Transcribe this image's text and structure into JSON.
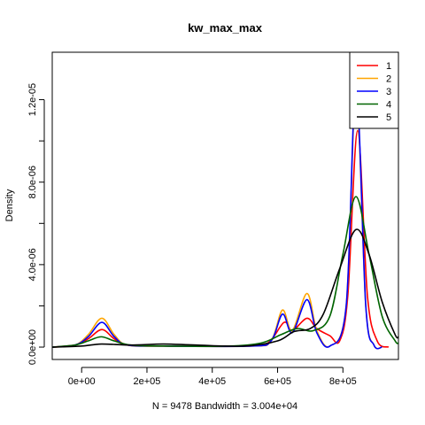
{
  "chart_data": {
    "type": "line",
    "title": "kw_max_max",
    "xlabel": "N = 9478   Bandwidth = 3.004e+04",
    "ylabel": "Density",
    "xlim": [
      -90000,
      970000
    ],
    "ylim": [
      -6e-07,
      1.43e-05
    ],
    "x_ticks": [
      {
        "value": 0,
        "label": "0e+00"
      },
      {
        "value": 200000,
        "label": "2e+05"
      },
      {
        "value": 400000,
        "label": "4e+05"
      },
      {
        "value": 600000,
        "label": "6e+05"
      },
      {
        "value": 800000,
        "label": "8e+05"
      }
    ],
    "y_ticks": [
      {
        "value": 0,
        "label": "0.0e+00"
      },
      {
        "value": 2e-06,
        "label": ""
      },
      {
        "value": 4e-06,
        "label": "4.0e-06"
      },
      {
        "value": 6e-06,
        "label": ""
      },
      {
        "value": 8e-06,
        "label": "8.0e-06"
      },
      {
        "value": 1e-05,
        "label": ""
      },
      {
        "value": 1.2e-05,
        "label": "1.2e-05"
      }
    ],
    "grid": false,
    "legend_position": "top-right",
    "series": [
      {
        "name": "1",
        "color": "#ff0000",
        "points": [
          [
            -90000,
            0
          ],
          [
            -20000,
            1e-07
          ],
          [
            20000,
            4e-07
          ],
          [
            62000,
            8.5e-07
          ],
          [
            100000,
            4e-07
          ],
          [
            140000,
            1e-07
          ],
          [
            250000,
            5e-08
          ],
          [
            500000,
            5e-08
          ],
          [
            570000,
            2e-07
          ],
          [
            620000,
            1.2e-06
          ],
          [
            645000,
            8e-07
          ],
          [
            690000,
            1.4e-06
          ],
          [
            720000,
            9e-07
          ],
          [
            760000,
            5.5e-07
          ],
          [
            790000,
            3e-07
          ],
          [
            815000,
            2.5e-06
          ],
          [
            845000,
            1.05e-05
          ],
          [
            875000,
            2.5e-06
          ],
          [
            905000,
            3e-07
          ],
          [
            940000,
            0
          ]
        ]
      },
      {
        "name": "2",
        "color": "#ffa500",
        "points": [
          [
            -90000,
            0
          ],
          [
            -20000,
            1e-07
          ],
          [
            20000,
            6e-07
          ],
          [
            62000,
            1.4e-06
          ],
          [
            100000,
            6e-07
          ],
          [
            140000,
            1e-07
          ],
          [
            250000,
            5e-08
          ],
          [
            520000,
            5e-08
          ],
          [
            580000,
            3e-07
          ],
          [
            615000,
            1.8e-06
          ],
          [
            645000,
            8e-07
          ],
          [
            690000,
            2.6e-06
          ],
          [
            720000,
            8e-07
          ],
          [
            760000,
            5e-08
          ],
          [
            810000,
            2e-06
          ],
          [
            840000,
            1.24e-05
          ],
          [
            870000,
            2e-06
          ],
          [
            895000,
            1e-07
          ],
          [
            920000,
            0
          ]
        ]
      },
      {
        "name": "3",
        "color": "#0000ff",
        "points": [
          [
            -90000,
            0
          ],
          [
            -20000,
            1e-07
          ],
          [
            20000,
            5e-07
          ],
          [
            62000,
            1.2e-06
          ],
          [
            100000,
            5e-07
          ],
          [
            140000,
            1e-07
          ],
          [
            250000,
            5e-08
          ],
          [
            520000,
            5e-08
          ],
          [
            580000,
            3e-07
          ],
          [
            615000,
            1.6e-06
          ],
          [
            645000,
            7e-07
          ],
          [
            690000,
            2.3e-06
          ],
          [
            720000,
            7e-07
          ],
          [
            760000,
            5e-08
          ],
          [
            810000,
            2e-06
          ],
          [
            840000,
            1.28e-05
          ],
          [
            870000,
            2e-06
          ],
          [
            895000,
            1e-07
          ],
          [
            920000,
            0
          ]
        ]
      },
      {
        "name": "4",
        "color": "#006400",
        "points": [
          [
            -90000,
            0
          ],
          [
            -20000,
            1e-07
          ],
          [
            20000,
            3e-07
          ],
          [
            60000,
            5e-07
          ],
          [
            100000,
            3e-07
          ],
          [
            150000,
            1e-07
          ],
          [
            250000,
            5e-08
          ],
          [
            450000,
            5e-08
          ],
          [
            550000,
            2e-07
          ],
          [
            610000,
            6e-07
          ],
          [
            660000,
            9e-07
          ],
          [
            710000,
            8e-07
          ],
          [
            760000,
            1.5e-06
          ],
          [
            800000,
            4.5e-06
          ],
          [
            840000,
            7.3e-06
          ],
          [
            880000,
            4.5e-06
          ],
          [
            920000,
            1.5e-06
          ],
          [
            960000,
            3e-07
          ],
          [
            970000,
            2e-07
          ]
        ]
      },
      {
        "name": "5",
        "color": "#000000",
        "points": [
          [
            -90000,
            0
          ],
          [
            0,
            5e-08
          ],
          [
            60000,
            1.5e-07
          ],
          [
            150000,
            1e-07
          ],
          [
            250000,
            1.5e-07
          ],
          [
            350000,
            1e-07
          ],
          [
            500000,
            5e-08
          ],
          [
            600000,
            3e-07
          ],
          [
            650000,
            7.5e-07
          ],
          [
            700000,
            9e-07
          ],
          [
            740000,
            1.6e-06
          ],
          [
            790000,
            3.8e-06
          ],
          [
            840000,
            5.7e-06
          ],
          [
            880000,
            4.5e-06
          ],
          [
            920000,
            2.2e-06
          ],
          [
            960000,
            6e-07
          ],
          [
            970000,
            5e-07
          ]
        ]
      }
    ]
  }
}
